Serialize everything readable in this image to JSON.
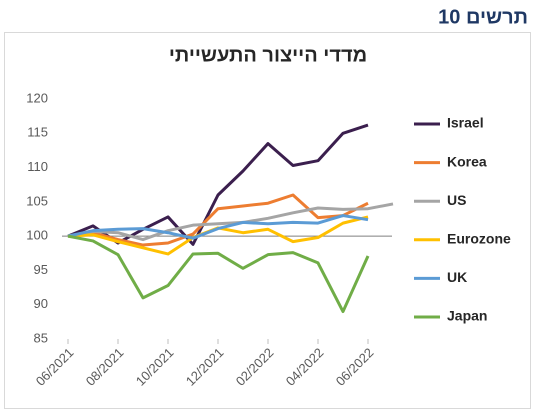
{
  "heading": "תרשים 10",
  "chart_data": {
    "type": "line",
    "title": "מדדי הייצור התעשייתי",
    "categories": [
      "06/2021",
      null,
      "08/2021",
      null,
      "10/2021",
      null,
      "12/2021",
      null,
      "02/2022",
      null,
      "04/2022",
      null,
      "06/2022",
      null
    ],
    "series": [
      {
        "name": "Israel",
        "color": "#3b1f4e",
        "values": [
          100,
          101.5,
          99,
          101,
          102.8,
          98.8,
          106,
          109.5,
          113.5,
          110.3,
          111,
          115,
          116.2,
          null
        ]
      },
      {
        "name": "Korea",
        "color": "#ed7d31",
        "values": [
          100,
          100.5,
          99.5,
          98.7,
          99,
          100.3,
          104,
          104.4,
          104.8,
          106,
          102.7,
          103,
          104.8,
          null
        ]
      },
      {
        "name": "US",
        "color": "#a5a5a5",
        "values": [
          100,
          100.7,
          100.5,
          99.5,
          100.8,
          101.6,
          101.8,
          102,
          102.6,
          103.4,
          104.1,
          103.9,
          104,
          104.7
        ]
      },
      {
        "name": "Eurozone",
        "color": "#ffc000",
        "values": [
          100,
          100.2,
          99.2,
          98.3,
          97.4,
          99.8,
          101.2,
          100.5,
          101,
          99.2,
          99.8,
          101.9,
          102.8,
          null
        ]
      },
      {
        "name": "UK",
        "color": "#5b9bd5",
        "values": [
          100,
          100.8,
          101,
          101.1,
          100.5,
          99.7,
          101.1,
          102,
          101.8,
          102,
          101.9,
          103,
          102.4,
          null
        ]
      },
      {
        "name": "Japan",
        "color": "#70ad47",
        "values": [
          100,
          99.3,
          97.3,
          91,
          92.8,
          97.4,
          97.5,
          95.3,
          97.3,
          97.6,
          96.1,
          89,
          97.1,
          null
        ]
      }
    ],
    "ylim": [
      85,
      120
    ],
    "yticks": [
      85,
      90,
      95,
      100,
      105,
      110,
      115,
      120
    ],
    "reference_line": 100,
    "legend": "right"
  }
}
